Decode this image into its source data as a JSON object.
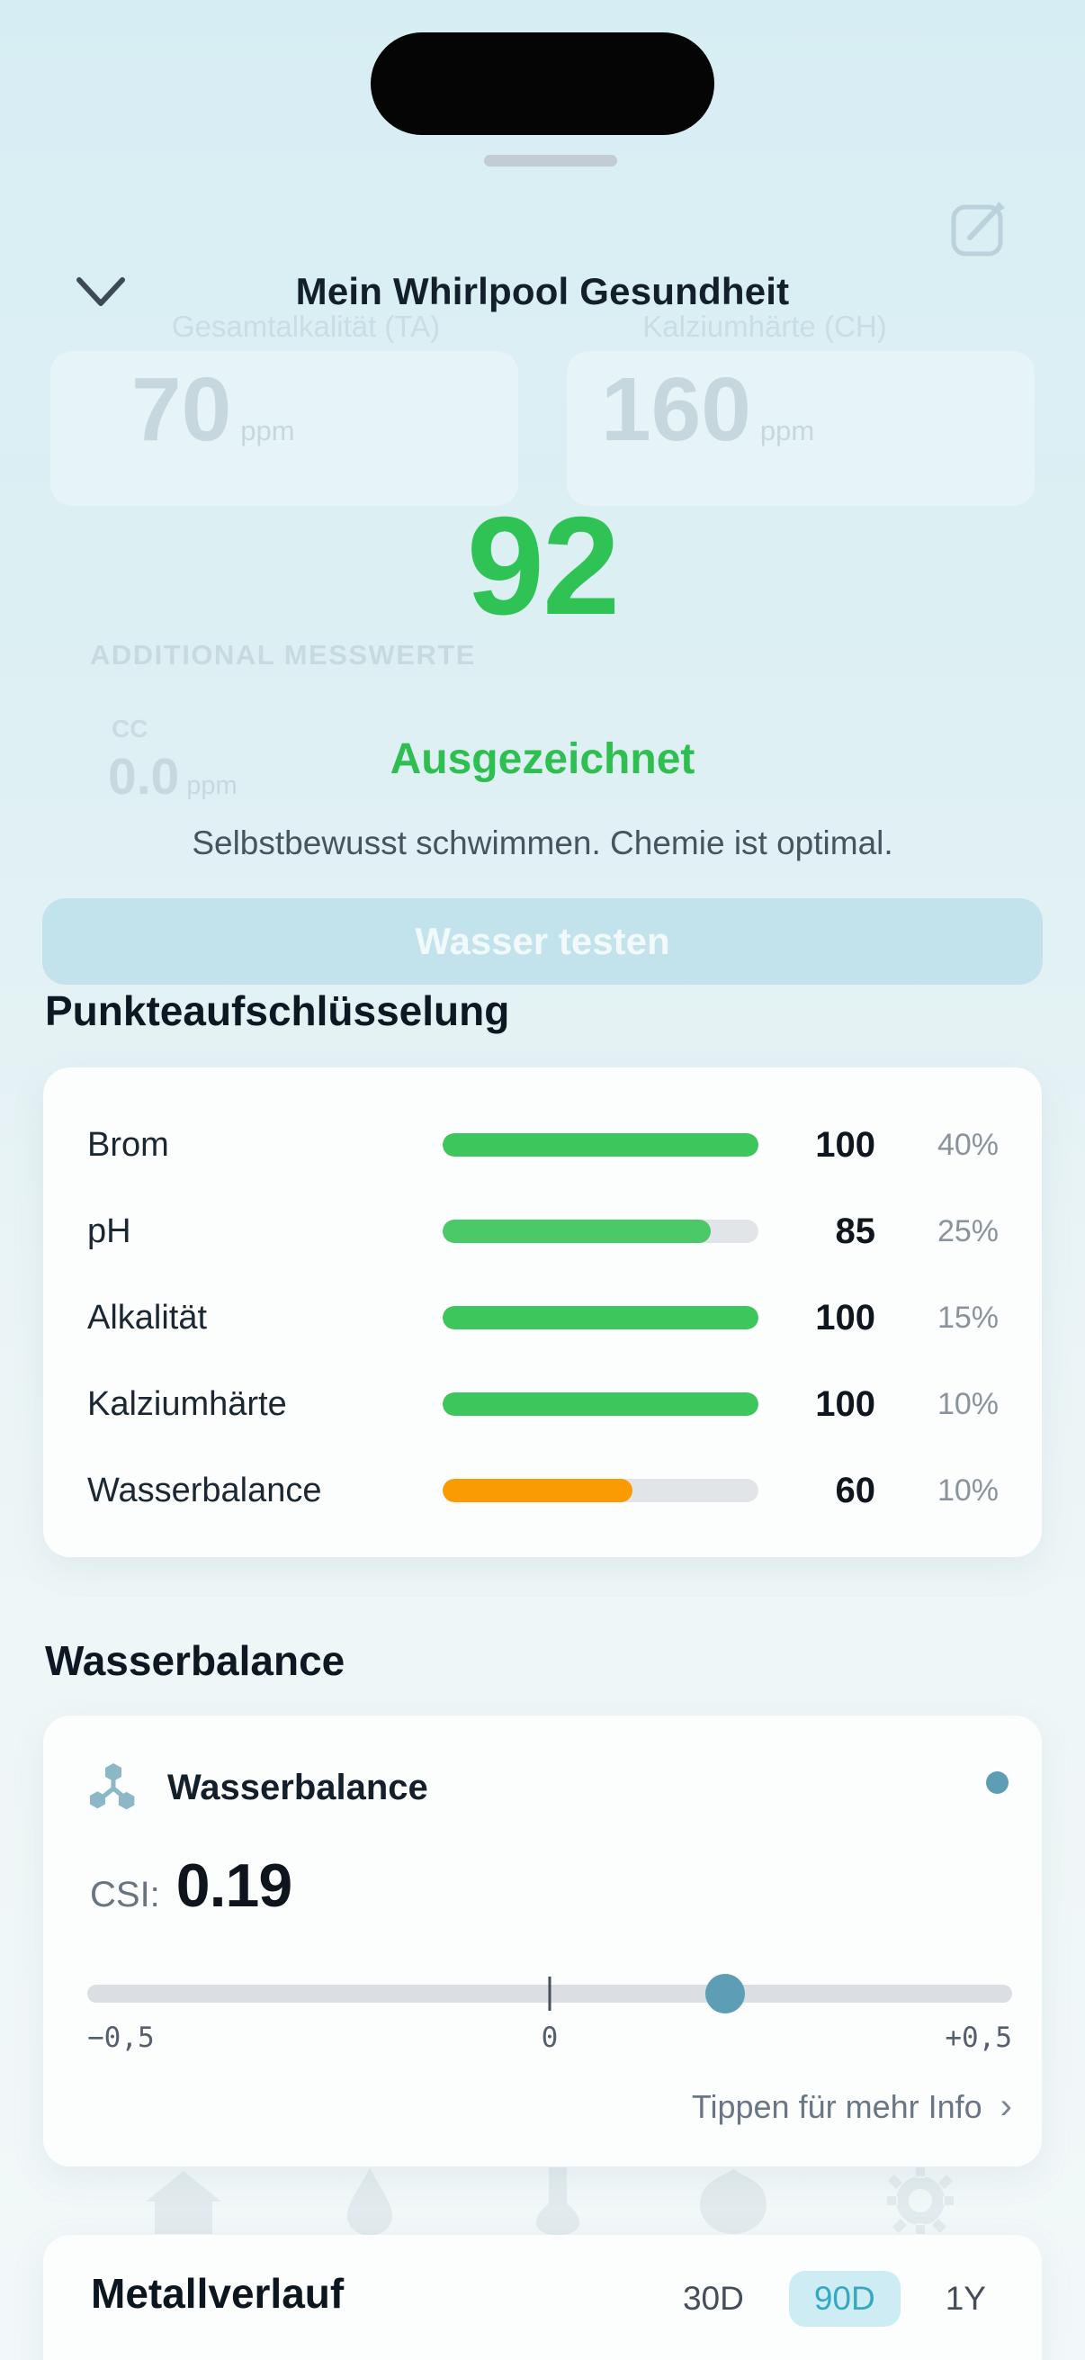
{
  "device": {
    "dynamic_island": true
  },
  "sheet": {
    "drag_handle": true,
    "title": "Mein Whirlpool Gesundheit"
  },
  "icons": {
    "collapse": "chevron-down",
    "edit": "compose-square-pen",
    "molecule": "molecule-nodes",
    "status_dot": "teal-dot",
    "more_info_chevron": "›",
    "faded_tab_bar": [
      "home",
      "water-drop",
      "test-flask",
      "water-care",
      "settings-gear"
    ]
  },
  "background_faded": {
    "metric_left": {
      "label": "Gesamtalkalität (TA)",
      "value": "70",
      "unit": "ppm"
    },
    "metric_right": {
      "label": "Kalziumhärte (CH)",
      "value": "160",
      "unit": "ppm"
    },
    "additional_section": "ADDITIONAL MESSWERTE",
    "cc_metric": {
      "label": "CC",
      "value": "0.0",
      "unit": "ppm"
    },
    "test_water_button": "Wasser testen"
  },
  "score": {
    "value": "92",
    "status": "Ausgezeichnet",
    "message": "Selbstbewusst schwimmen. Chemie ist optimal."
  },
  "breakdown": {
    "title": "Punkteaufschlüsselung",
    "rows": [
      {
        "label": "Brom",
        "score": "100",
        "weight": "40%",
        "fill_pct": 100,
        "bar_color": "#3cc65c"
      },
      {
        "label": "pH",
        "score": "85",
        "weight": "25%",
        "fill_pct": 85,
        "bar_color": "#4bc868"
      },
      {
        "label": "Alkalität",
        "score": "100",
        "weight": "15%",
        "fill_pct": 100,
        "bar_color": "#3cc65c"
      },
      {
        "label": "Kalziumhärte",
        "score": "100",
        "weight": "10%",
        "fill_pct": 100,
        "bar_color": "#3cc65c"
      },
      {
        "label": "Wasserbalance",
        "score": "60",
        "weight": "10%",
        "fill_pct": 60,
        "bar_color": "#fb9b04"
      }
    ]
  },
  "water_balance": {
    "section_title": "Wasserbalance",
    "card_title": "Wasserbalance",
    "csi_label": "CSI:",
    "csi_value": "0.19",
    "slider": {
      "min": -0.5,
      "max": 0.5,
      "value": 0.19,
      "min_label": "−0,5",
      "mid_label": "0",
      "max_label": "+0,5"
    },
    "more_info_label": "Tippen für mehr Info",
    "more_info_chevron": "›"
  },
  "metal_history": {
    "title": "Metallverlauf",
    "ranges": [
      {
        "label": "30D",
        "selected": false
      },
      {
        "label": "90D",
        "selected": true
      },
      {
        "label": "1Y",
        "selected": false
      }
    ]
  },
  "colors": {
    "score_green": "#2fc355",
    "status_green": "#2fbf50",
    "bar_green": "#3cc65c",
    "bar_orange": "#fb9b04",
    "bar_track": "#e2e5e8",
    "teal_accent": "#5d9eb4",
    "segment_selected_bg": "#cdecf4",
    "segment_selected_text": "#35a9c3",
    "background_top": "#d6edf3",
    "background_bottom": "#f2f8f9"
  }
}
